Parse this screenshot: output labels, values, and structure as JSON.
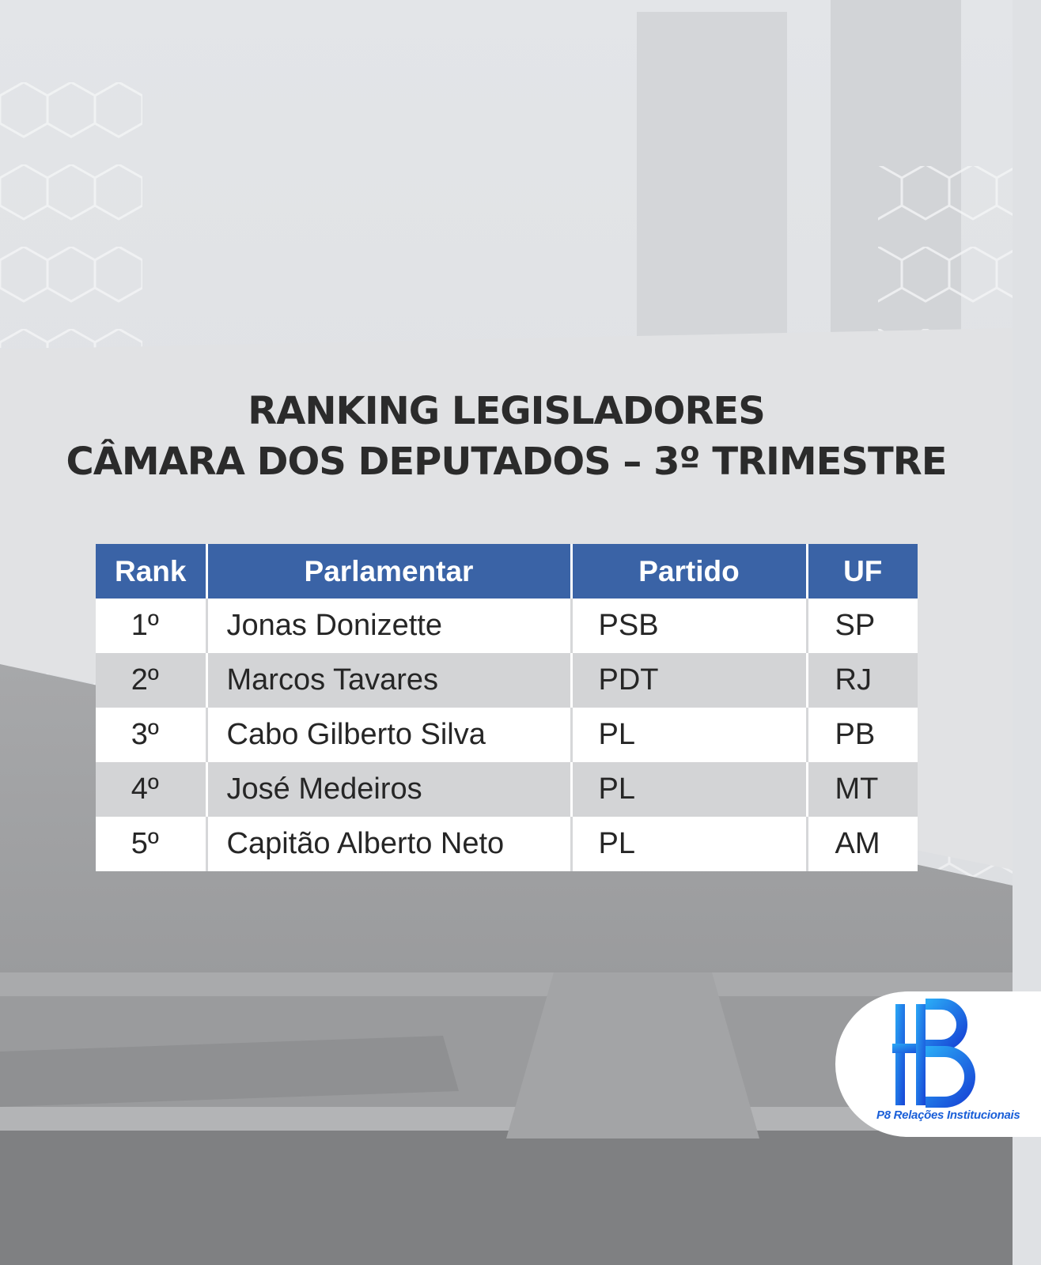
{
  "title": {
    "line1": "RANKING LEGISLADORES",
    "line2": "CÂMARA DOS DEPUTADOS – 3º TRIMESTRE"
  },
  "table": {
    "headers": [
      "Rank",
      "Parlamentar",
      "Partido",
      "UF"
    ],
    "rows": [
      {
        "rank": "1º",
        "name": "Jonas Donizette",
        "party": "PSB",
        "uf": "SP"
      },
      {
        "rank": "2º",
        "name": "Marcos Tavares",
        "party": "PDT",
        "uf": "RJ"
      },
      {
        "rank": "3º",
        "name": "Cabo Gilberto Silva",
        "party": "PL",
        "uf": "PB"
      },
      {
        "rank": "4º",
        "name": "José Medeiros",
        "party": "PL",
        "uf": "MT"
      },
      {
        "rank": "5º",
        "name": "Capitão Alberto Neto",
        "party": "PL",
        "uf": "AM"
      }
    ]
  },
  "logo": {
    "caption": "P8 Relações Institucionais"
  },
  "colors": {
    "header_bg": "#3a63a6",
    "row_alt_bg": "#d3d4d6",
    "title_text": "#2b2b2b",
    "logo_blue": "#1a5fd8"
  }
}
